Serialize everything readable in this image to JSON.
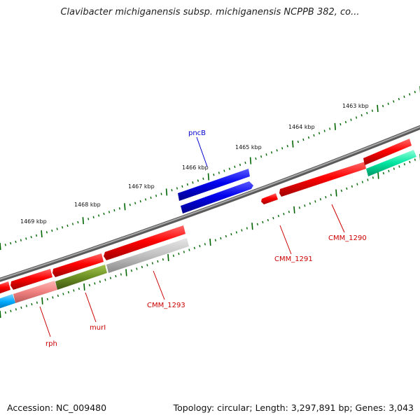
{
  "title": "Clavibacter michiganensis subsp. michiganensis NCPPB 382, co...",
  "footer": {
    "accession": "Accession: NC_009480",
    "summary": "Topology: circular; Length: 3,297,891 bp; Genes: 3,043"
  },
  "scale_labels": [
    "1463 kbp",
    "1464 kbp",
    "1465 kbp",
    "1466 kbp",
    "1467 kbp",
    "1468 kbp",
    "1469 kbp"
  ],
  "gene_labels": {
    "pncB": "pncB",
    "cmm1290": "CMM_1290",
    "cmm1291": "CMM_1291",
    "cmm1293": "CMM_1293",
    "murI": "murI",
    "rph": "rph"
  },
  "colors": {
    "forward": "#ff0000",
    "highlight": "#0000ee",
    "label_red": "#cc0000",
    "label_blue": "#0000cc",
    "tick": "#006600",
    "backbone": "#808080",
    "gray_feature": "#c0c0c0",
    "olive_feature": "#6b8e23",
    "pink_feature": "#f08080",
    "teal_feature": "#00e5a0",
    "cyan_feature": "#00aaff"
  }
}
